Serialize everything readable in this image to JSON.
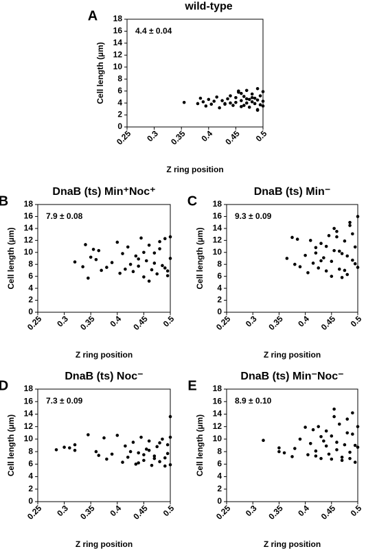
{
  "chart_data": [
    {
      "type": "scatter",
      "panel": "A",
      "title": "wild-type",
      "annotation": "4.4 ± 0.04",
      "x_label": "Z ring position",
      "y_label": "Cell length (µm)",
      "color": "#000000",
      "x": [
        0.355,
        0.38,
        0.385,
        0.39,
        0.395,
        0.4,
        0.405,
        0.41,
        0.415,
        0.42,
        0.425,
        0.43,
        0.435,
        0.44,
        0.445,
        0.45,
        0.45,
        0.455,
        0.46,
        0.46,
        0.465,
        0.47,
        0.47,
        0.475,
        0.475,
        0.48,
        0.48,
        0.485,
        0.485,
        0.49,
        0.49,
        0.49,
        0.495,
        0.495,
        0.5,
        0.5,
        0.5,
        0.44,
        0.46,
        0.48,
        0.43,
        0.47,
        0.49,
        0.455,
        0.465
      ],
      "values": [
        4.1,
        3.9,
        4.8,
        4.2,
        3.5,
        4.6,
        3.8,
        4.3,
        5.0,
        3.2,
        4.4,
        3.9,
        4.7,
        5.2,
        3.6,
        4.9,
        4.1,
        5.8,
        4.4,
        3.4,
        5.1,
        4.0,
        6.1,
        4.6,
        3.3,
        5.5,
        4.2,
        4.8,
        3.9,
        6.4,
        4.5,
        2.8,
        5.2,
        3.7,
        4.3,
        5.9,
        3.5,
        4.0,
        5.6,
        4.9,
        3.8,
        4.7,
        2.9,
        6.0,
        3.6
      ],
      "xlim": [
        0.25,
        0.5
      ],
      "xticks": [
        0.25,
        0.3,
        0.35,
        0.4,
        0.45,
        0.5
      ],
      "ylim": [
        0,
        18
      ],
      "yticks": [
        0,
        2,
        4,
        6,
        8,
        10,
        12,
        14,
        16,
        18
      ]
    },
    {
      "type": "scatter",
      "panel": "B",
      "title": "DnaB (ts) Min⁺Noc⁺",
      "annotation": "7.9 ± 0.08",
      "x_label": "Z ring position",
      "y_label": "Cell length (µm)",
      "color": "#000000",
      "x": [
        0.32,
        0.335,
        0.34,
        0.345,
        0.35,
        0.355,
        0.36,
        0.365,
        0.37,
        0.38,
        0.39,
        0.4,
        0.405,
        0.41,
        0.415,
        0.42,
        0.425,
        0.43,
        0.435,
        0.44,
        0.445,
        0.45,
        0.455,
        0.46,
        0.465,
        0.47,
        0.475,
        0.48,
        0.485,
        0.49,
        0.495,
        0.5,
        0.46,
        0.47,
        0.48,
        0.49,
        0.5,
        0.45,
        0.44,
        0.495
      ],
      "values": [
        8.4,
        7.6,
        11.3,
        5.7,
        9.2,
        10.5,
        8.8,
        10.3,
        7.0,
        7.5,
        8.3,
        11.7,
        6.5,
        9.8,
        7.2,
        10.9,
        8.0,
        6.8,
        9.4,
        7.7,
        12.4,
        5.9,
        8.6,
        11.2,
        7.1,
        9.9,
        6.4,
        10.6,
        7.8,
        12.3,
        6.1,
        9.0,
        5.2,
        8.2,
        11.8,
        7.4,
        12.6,
        10.0,
        8.9,
        6.9
      ],
      "xlim": [
        0.25,
        0.5
      ],
      "xticks": [
        0.25,
        0.3,
        0.35,
        0.4,
        0.45,
        0.5
      ],
      "ylim": [
        0,
        18
      ],
      "yticks": [
        0,
        2,
        4,
        6,
        8,
        10,
        12,
        14,
        16,
        18
      ]
    },
    {
      "type": "scatter",
      "panel": "C",
      "title": "DnaB (ts) Min⁻",
      "annotation": "9.3 ± 0.09",
      "x_label": "Z ring position",
      "y_label": "Cell length (µm)",
      "color": "#000000",
      "x": [
        0.365,
        0.375,
        0.38,
        0.385,
        0.39,
        0.4,
        0.405,
        0.41,
        0.415,
        0.42,
        0.425,
        0.43,
        0.435,
        0.44,
        0.445,
        0.45,
        0.455,
        0.46,
        0.465,
        0.47,
        0.475,
        0.48,
        0.485,
        0.49,
        0.495,
        0.5,
        0.5,
        0.46,
        0.47,
        0.48,
        0.49,
        0.45,
        0.44,
        0.495,
        0.485,
        0.475,
        0.465,
        0.455,
        0.43,
        0.42
      ],
      "values": [
        9.0,
        12.5,
        8.0,
        12.2,
        7.6,
        9.5,
        6.6,
        12.0,
        8.2,
        10.8,
        7.4,
        11.5,
        9.1,
        6.9,
        12.8,
        8.5,
        10.3,
        13.5,
        7.2,
        9.8,
        11.9,
        6.3,
        14.5,
        8.7,
        10.9,
        16.0,
        7.5,
        12.6,
        5.8,
        9.4,
        13.1,
        6.0,
        11.0,
        8.1,
        15.0,
        7.0,
        10.2,
        14.0,
        8.6,
        9.9
      ],
      "xlim": [
        0.25,
        0.5
      ],
      "xticks": [
        0.25,
        0.3,
        0.35,
        0.4,
        0.45,
        0.5
      ],
      "ylim": [
        0,
        18
      ],
      "yticks": [
        0,
        2,
        4,
        6,
        8,
        10,
        12,
        14,
        16,
        18
      ]
    },
    {
      "type": "scatter",
      "panel": "D",
      "title": "DnaB (ts) Noc⁻",
      "annotation": "7.3 ± 0.09",
      "x_label": "Z ring position",
      "y_label": "Cell length (µm)",
      "color": "#000000",
      "x": [
        0.285,
        0.3,
        0.31,
        0.32,
        0.32,
        0.345,
        0.36,
        0.365,
        0.375,
        0.38,
        0.39,
        0.4,
        0.41,
        0.415,
        0.42,
        0.43,
        0.435,
        0.44,
        0.445,
        0.45,
        0.455,
        0.46,
        0.465,
        0.47,
        0.475,
        0.48,
        0.485,
        0.49,
        0.495,
        0.5,
        0.5,
        0.47,
        0.46,
        0.49,
        0.48,
        0.45,
        0.44,
        0.425,
        0.5,
        0.495
      ],
      "values": [
        8.3,
        8.7,
        8.6,
        8.2,
        9.1,
        10.7,
        8.0,
        7.4,
        10.2,
        6.8,
        7.6,
        10.6,
        6.3,
        8.9,
        7.1,
        9.5,
        6.0,
        7.8,
        10.3,
        6.6,
        8.4,
        9.7,
        5.8,
        7.3,
        8.8,
        6.4,
        10.0,
        7.0,
        9.1,
        13.6,
        5.9,
        6.9,
        8.2,
        5.7,
        9.4,
        7.5,
        6.2,
        8.0,
        10.3,
        7.7
      ],
      "xlim": [
        0.25,
        0.5
      ],
      "xticks": [
        0.25,
        0.3,
        0.35,
        0.4,
        0.45,
        0.5
      ],
      "ylim": [
        0,
        18
      ],
      "yticks": [
        0,
        2,
        4,
        6,
        8,
        10,
        12,
        14,
        16,
        18
      ]
    },
    {
      "type": "scatter",
      "panel": "E",
      "title": "DnaB (ts) Min⁻Noc⁻",
      "annotation": "8.9 ± 0.10",
      "x_label": "Z ring position",
      "y_label": "Cell length (µm)",
      "color": "#000000",
      "x": [
        0.32,
        0.35,
        0.35,
        0.36,
        0.375,
        0.38,
        0.39,
        0.4,
        0.405,
        0.41,
        0.415,
        0.42,
        0.425,
        0.43,
        0.435,
        0.44,
        0.445,
        0.45,
        0.455,
        0.46,
        0.465,
        0.47,
        0.475,
        0.48,
        0.485,
        0.49,
        0.495,
        0.5,
        0.5,
        0.46,
        0.47,
        0.48,
        0.49,
        0.45,
        0.44,
        0.43,
        0.42,
        0.495,
        0.485,
        0.455
      ],
      "values": [
        9.8,
        8.6,
        8.0,
        7.8,
        7.2,
        8.5,
        10.0,
        11.9,
        7.5,
        9.3,
        11.5,
        8.1,
        12.0,
        6.9,
        9.7,
        11.3,
        7.6,
        10.5,
        14.8,
        8.3,
        12.4,
        6.6,
        9.1,
        13.2,
        7.9,
        10.8,
        6.3,
        8.7,
        12.0,
        9.5,
        7.1,
        11.0,
        14.2,
        6.8,
        8.9,
        10.4,
        7.3,
        9.0,
        6.9,
        13.6
      ],
      "xlim": [
        0.25,
        0.5
      ],
      "xticks": [
        0.25,
        0.3,
        0.35,
        0.4,
        0.45,
        0.5
      ],
      "ylim": [
        0,
        18
      ],
      "yticks": [
        0,
        2,
        4,
        6,
        8,
        10,
        12,
        14,
        16,
        18
      ]
    }
  ]
}
